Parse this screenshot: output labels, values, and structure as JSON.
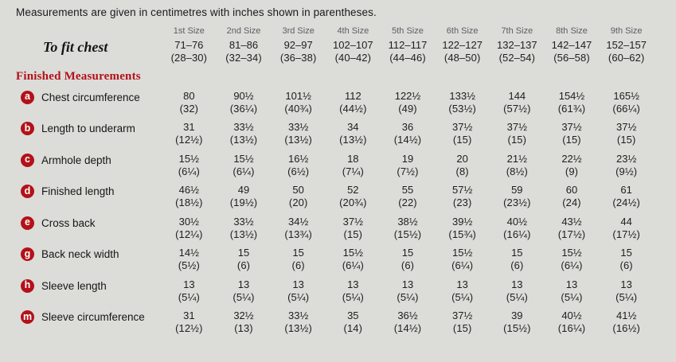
{
  "intro": "Measurements are given in centimetres with inches shown in parentheses.",
  "colors": {
    "background": "#dcdcd9",
    "accent_red": "#b31118",
    "header_gray": "#5d5e61",
    "text": "#1e1e1e"
  },
  "table": {
    "size_headers": [
      "1st Size",
      "2nd Size",
      "3rd Size",
      "4th Size",
      "5th Size",
      "6th Size",
      "7th Size",
      "8th Size",
      "9th Size"
    ],
    "to_fit_chest": {
      "label": "To fit chest",
      "cm": [
        "71–76",
        "81–86",
        "92–97",
        "102–107",
        "112–117",
        "122–127",
        "132–137",
        "142–147",
        "152–157"
      ],
      "in": [
        "(28–30)",
        "(32–34)",
        "(36–38)",
        "(40–42)",
        "(44–46)",
        "(48–50)",
        "(52–54)",
        "(56–58)",
        "(60–62)"
      ]
    },
    "section_title": "Finished Measurements",
    "rows": [
      {
        "key": "a",
        "label": "Chest circumference",
        "cm": [
          "80",
          "90½",
          "101½",
          "112",
          "122½",
          "133½",
          "144",
          "154½",
          "165½"
        ],
        "in": [
          "(32)",
          "(36¼)",
          "(40¾)",
          "(44½)",
          "(49)",
          "(53½)",
          "(57½)",
          "(61¾)",
          "(66¼)"
        ]
      },
      {
        "key": "b",
        "label": "Length to underarm",
        "cm": [
          "31",
          "33½",
          "33½",
          "34",
          "36",
          "37½",
          "37½",
          "37½",
          "37½"
        ],
        "in": [
          "(12½)",
          "(13½)",
          "(13½)",
          "(13½)",
          "(14½)",
          "(15)",
          "(15)",
          "(15)",
          "(15)"
        ]
      },
      {
        "key": "c",
        "label": "Armhole depth",
        "cm": [
          "15½",
          "15½",
          "16½",
          "18",
          "19",
          "20",
          "21½",
          "22½",
          "23½"
        ],
        "in": [
          "(6¼)",
          "(6¼)",
          "(6½)",
          "(7¼)",
          "(7½)",
          "(8)",
          "(8½)",
          "(9)",
          "(9½)"
        ]
      },
      {
        "key": "d",
        "label": "Finished length",
        "cm": [
          "46½",
          "49",
          "50",
          "52",
          "55",
          "57½",
          "59",
          "60",
          "61"
        ],
        "in": [
          "(18½)",
          "(19½)",
          "(20)",
          "(20¾)",
          "(22)",
          "(23)",
          "(23½)",
          "(24)",
          "(24½)"
        ]
      },
      {
        "key": "e",
        "label": "Cross back",
        "cm": [
          "30½",
          "33½",
          "34½",
          "37½",
          "38½",
          "39½",
          "40½",
          "43½",
          "44"
        ],
        "in": [
          "(12¼)",
          "(13½)",
          "(13¾)",
          "(15)",
          "(15½)",
          "(15¾)",
          "(16¼)",
          "(17½)",
          "(17½)"
        ]
      },
      {
        "key": "g",
        "label": "Back neck width",
        "cm": [
          "14½",
          "15",
          "15",
          "15½",
          "15",
          "15½",
          "15",
          "15½",
          "15"
        ],
        "in": [
          "(5½)",
          "(6)",
          "(6)",
          "(6¼)",
          "(6)",
          "(6¼)",
          "(6)",
          "(6¼)",
          "(6)"
        ]
      },
      {
        "key": "h",
        "label": "Sleeve length",
        "cm": [
          "13",
          "13",
          "13",
          "13",
          "13",
          "13",
          "13",
          "13",
          "13"
        ],
        "in": [
          "(5¼)",
          "(5¼)",
          "(5¼)",
          "(5¼)",
          "(5¼)",
          "(5¼)",
          "(5¼)",
          "(5¼)",
          "(5¼)"
        ]
      },
      {
        "key": "m",
        "label": "Sleeve circumference",
        "cm": [
          "31",
          "32½",
          "33½",
          "35",
          "36½",
          "37½",
          "39",
          "40½",
          "41½"
        ],
        "in": [
          "(12½)",
          "(13)",
          "(13½)",
          "(14)",
          "(14½)",
          "(15)",
          "(15½)",
          "(16¼)",
          "(16½)"
        ]
      }
    ]
  }
}
